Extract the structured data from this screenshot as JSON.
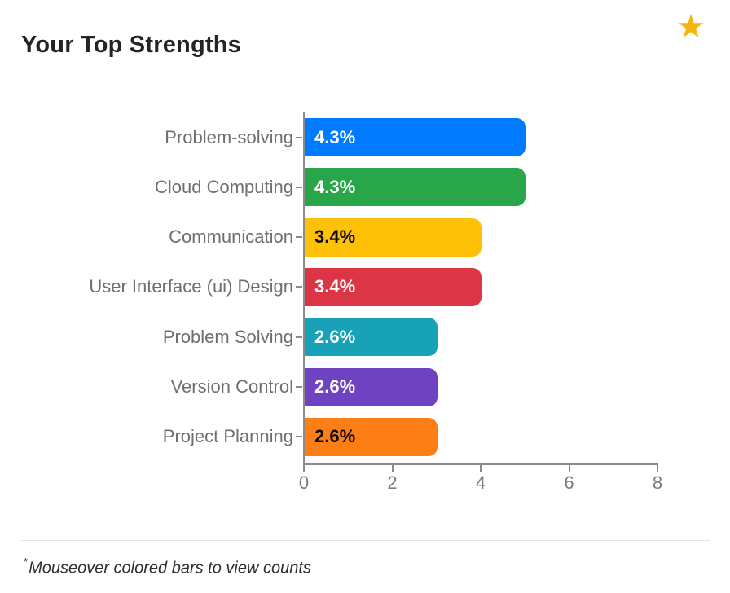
{
  "header": {
    "title": "Your Top Strengths",
    "star_icon": "★",
    "star_color": "#F5B50D"
  },
  "chart_data": {
    "type": "bar",
    "orientation": "horizontal",
    "title": "Your Top Strengths",
    "xlabel": "",
    "ylabel": "",
    "xlim": [
      0,
      8
    ],
    "xticks": [
      0,
      2,
      4,
      6,
      8
    ],
    "grid": false,
    "legend": false,
    "categories": [
      "Problem-solving",
      "Cloud Computing",
      "Communication",
      "User Interface (ui) Design",
      "Problem Solving",
      "Version Control",
      "Project Planning"
    ],
    "series": [
      {
        "name": "counts",
        "values": [
          5,
          5,
          4,
          4,
          3,
          3,
          3
        ]
      }
    ],
    "bar_labels": [
      "4.3%",
      "4.3%",
      "3.4%",
      "3.4%",
      "2.6%",
      "2.6%",
      "2.6%"
    ],
    "bar_colors": [
      "#007BFF",
      "#2AA64A",
      "#FFC107",
      "#DC3545",
      "#17A2B8",
      "#6F42C1",
      "#FD7E14"
    ],
    "bar_label_text_colors": [
      "#ffffff",
      "#ffffff",
      "#0a0a0a",
      "#ffffff",
      "#ffffff",
      "#ffffff",
      "#0a0a0a"
    ],
    "axis_color": "#8a8a8a"
  },
  "footnote": {
    "asterisk": "*",
    "text": "Mouseover colored bars to view counts"
  }
}
